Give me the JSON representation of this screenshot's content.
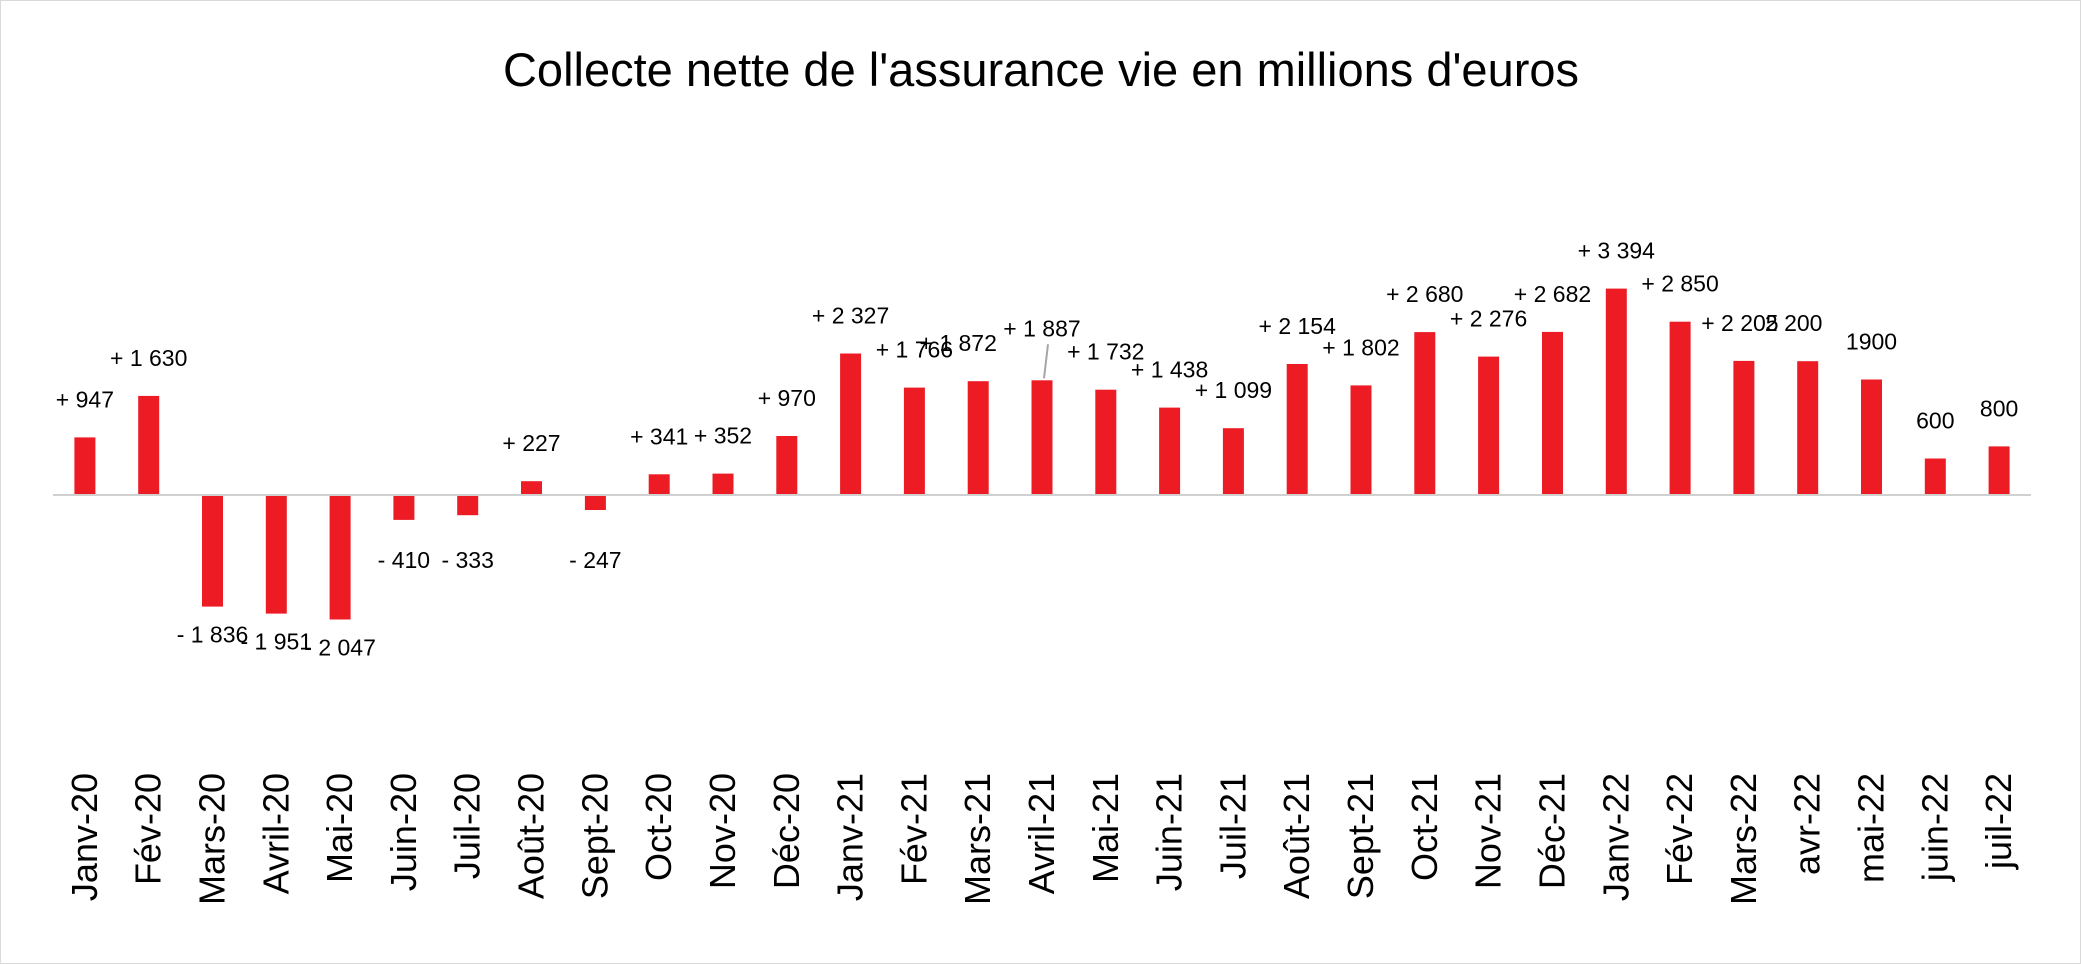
{
  "chart_data": {
    "type": "bar",
    "title": "Collecte nette de l'assurance vie en millions d'euros",
    "xlabel": "",
    "ylabel": "",
    "grid": false,
    "legend": "none",
    "bar_color": "#ed1c24",
    "axis_color": "#d0d0d0",
    "ylim": [
      -2500,
      3800
    ],
    "categories": [
      "Janv-20",
      "Fév-20",
      "Mars-20",
      "Avril-20",
      "Mai-20",
      "Juin-20",
      "Juil-20",
      "Août-20",
      "Sept-20",
      "Oct-20",
      "Nov-20",
      "Déc-20",
      "Janv-21",
      "Fév-21",
      "Mars-21",
      "Avril-21",
      "Mai-21",
      "Juin-21",
      "Juil-21",
      "Août-21",
      "Sept-21",
      "Oct-21",
      "Nov-21",
      "Déc-21",
      "Janv-22",
      "Fév-22",
      "Mars-22",
      "avr-22",
      "mai-22",
      "juin-22",
      "juil-22"
    ],
    "values": [
      947,
      1630,
      -1836,
      -1951,
      -2047,
      -410,
      -333,
      227,
      -247,
      341,
      352,
      970,
      2327,
      1766,
      1872,
      1887,
      1732,
      1438,
      1099,
      2154,
      1802,
      2680,
      2276,
      2682,
      3394,
      2850,
      2205,
      2200,
      1900,
      600,
      800
    ],
    "data_labels": [
      "+ 947",
      "+ 1 630",
      "- 1 836",
      "- 1 951",
      "- 2 047",
      "- 410",
      "- 333",
      "+ 227",
      "- 247",
      "+ 341",
      "+ 352",
      "+ 970",
      "+ 2 327",
      "+ 1 766",
      "+ 1 872",
      "+ 1 887",
      "+ 1 732",
      "+ 1 438",
      "+ 1 099",
      "+ 2 154",
      "+ 1 802",
      "+ 2 680",
      "+ 2 276",
      "+ 2 682",
      "+ 3 394",
      "+ 2 850",
      "+ 2 205",
      "2 200",
      "1900",
      "600",
      "800"
    ]
  }
}
